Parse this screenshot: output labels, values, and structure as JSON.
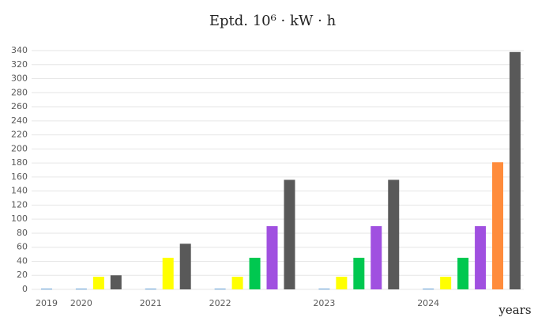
{
  "chart_data": {
    "type": "bar",
    "title": "Eptd. 10⁶ · kW · h",
    "x_label": "years",
    "categories": [
      "2019",
      null,
      "2020",
      null,
      null,
      null,
      "2021",
      null,
      null,
      null,
      "2022",
      null,
      null,
      null,
      null,
      null,
      "2023",
      null,
      null,
      null,
      null,
      null,
      "2024",
      null,
      null,
      null,
      null,
      null
    ],
    "values": [
      1,
      null,
      1,
      18,
      20,
      null,
      1,
      45,
      65,
      null,
      1,
      18,
      45,
      90,
      156,
      null,
      1,
      18,
      45,
      90,
      156,
      null,
      1,
      18,
      45,
      90,
      181,
      338
    ],
    "colors": [
      "#5b9bd5",
      null,
      "#5b9bd5",
      "#ffff00",
      "#595959",
      null,
      "#5b9bd5",
      "#ffff00",
      "#595959",
      null,
      "#5b9bd5",
      "#ffff00",
      "#00c850",
      "#a050e0",
      "#595959",
      null,
      "#5b9bd5",
      "#ffff00",
      "#00c850",
      "#a050e0",
      "#595959",
      null,
      "#5b9bd5",
      "#ffff00",
      "#00c850",
      "#a050e0",
      "#ff8c3c",
      "#595959"
    ],
    "ylim": [
      0,
      340
    ],
    "yticks": [
      0,
      20,
      40,
      60,
      80,
      100,
      120,
      140,
      160,
      180,
      200,
      220,
      240,
      260,
      280,
      300,
      320,
      340
    ],
    "grid": true
  }
}
